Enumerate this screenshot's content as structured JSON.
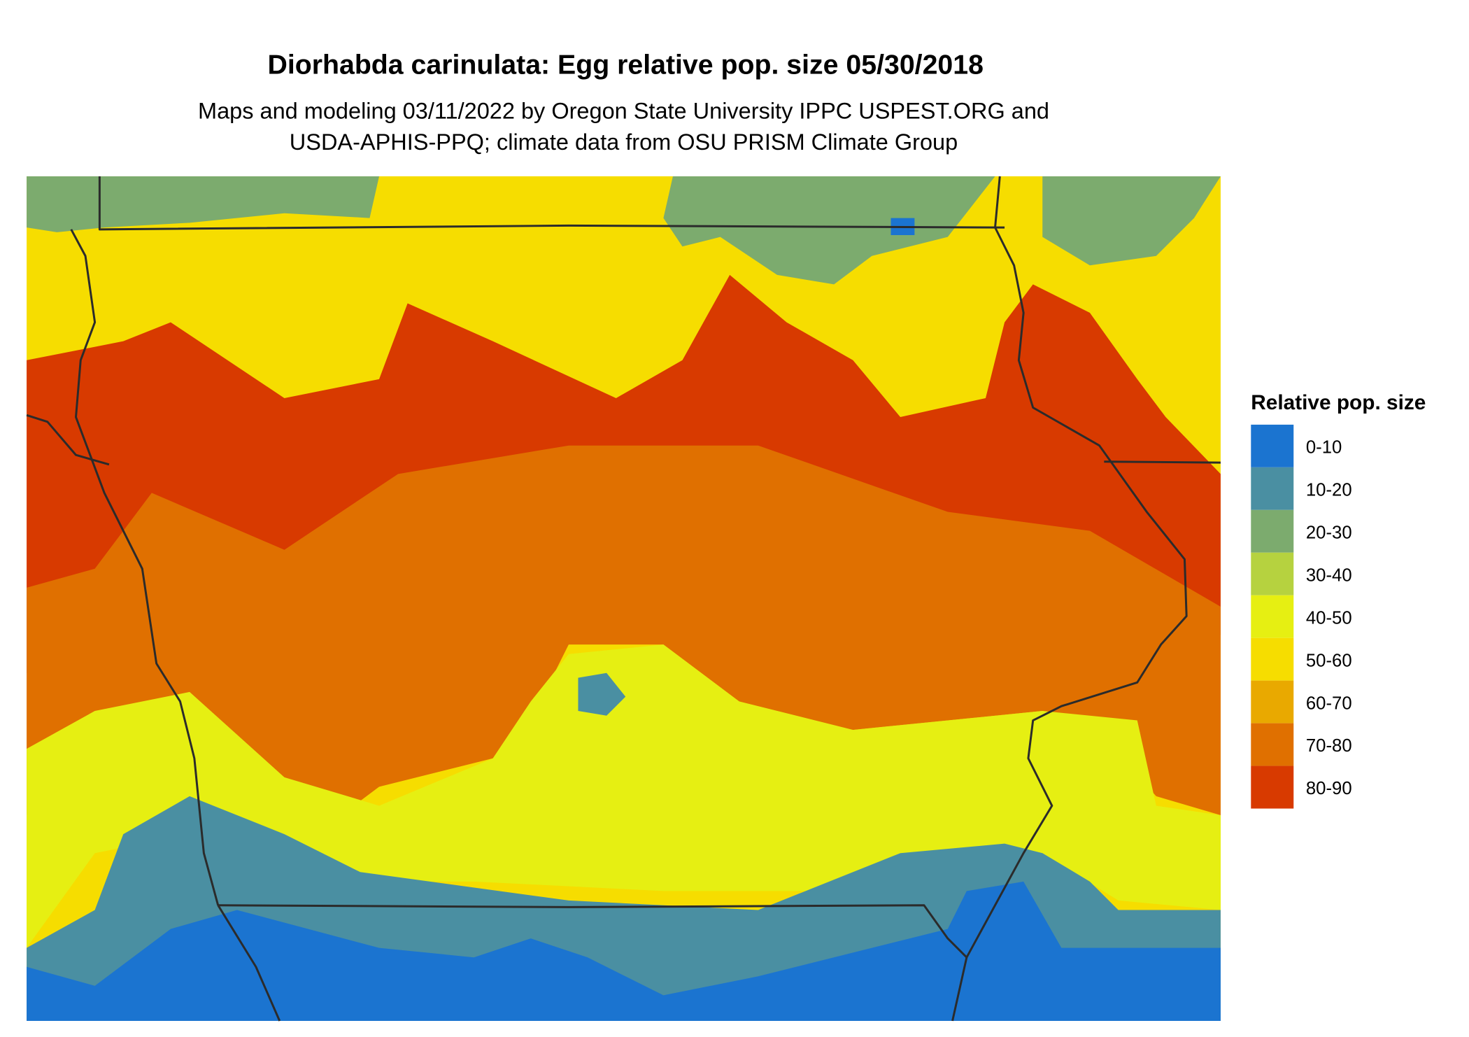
{
  "title": "Diorhabda carinulata: Egg relative pop. size 05/30/2018",
  "subtitle": [
    "Maps and modeling 03/11/2022 by Oregon State University IPPC USPEST.ORG and",
    "USDA-APHIS-PPQ; climate data from OSU PRISM Climate Group"
  ],
  "legend": {
    "title": "Relative pop. size",
    "items": [
      {
        "label": "0-10",
        "color": "#1b74d0"
      },
      {
        "label": "10-20",
        "color": "#4a8fa2"
      },
      {
        "label": "20-30",
        "color": "#7cab6e"
      },
      {
        "label": "30-40",
        "color": "#b6d23f"
      },
      {
        "label": "40-50",
        "color": "#e6ef12"
      },
      {
        "label": "50-60",
        "color": "#f6dd00"
      },
      {
        "label": "60-70",
        "color": "#e9a900"
      },
      {
        "label": "70-80",
        "color": "#e07000"
      },
      {
        "label": "80-90",
        "color": "#d83a00"
      }
    ]
  }
}
